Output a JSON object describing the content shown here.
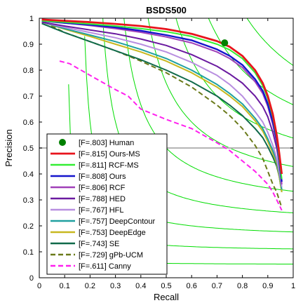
{
  "chart_data": {
    "type": "line",
    "title": "BSDS500",
    "xlabel": "Recall",
    "ylabel": "Precision",
    "xlim": [
      0,
      1
    ],
    "ylim": [
      0,
      1
    ],
    "xticks": [
      "0",
      "0.1",
      "0.2",
      "0.3",
      "0.4",
      "0.5",
      "0.6",
      "0.7",
      "0.8",
      "0.9",
      "1"
    ],
    "yticks": [
      "0",
      "0.1",
      "0.2",
      "0.3",
      "0.4",
      "0.5",
      "0.6",
      "0.7",
      "0.8",
      "0.9",
      "1"
    ],
    "grid": false,
    "legend_position": "bottom-left",
    "reference_line": {
      "y": 0.5,
      "color": "#b4b4b4"
    },
    "iso_f_contours": {
      "color": "#00dd00",
      "f_values": [
        0.1,
        0.2,
        0.3,
        0.4,
        0.5,
        0.6,
        0.7,
        0.8,
        0.9
      ]
    },
    "human_point": {
      "label": "[F=.803] Human",
      "x": 0.73,
      "y": 0.905,
      "color": "#008000"
    },
    "series": [
      {
        "name": "[F=.815] Ours-MS",
        "color": "#e8141c",
        "dash": "solid",
        "width": 2.8,
        "x": [
          0.01,
          0.1,
          0.2,
          0.3,
          0.4,
          0.5,
          0.6,
          0.7,
          0.75,
          0.8,
          0.85,
          0.88,
          0.9,
          0.92,
          0.935,
          0.945,
          0.955
        ],
        "y": [
          0.995,
          0.99,
          0.985,
          0.978,
          0.97,
          0.958,
          0.94,
          0.912,
          0.89,
          0.855,
          0.8,
          0.75,
          0.7,
          0.63,
          0.55,
          0.48,
          0.4
        ]
      },
      {
        "name": "[F=.811] RCF-MS",
        "color": "#33ee33",
        "dash": "solid",
        "width": 2.0,
        "x": [
          0.01,
          0.1,
          0.2,
          0.3,
          0.4,
          0.5,
          0.6,
          0.7,
          0.75,
          0.8,
          0.85,
          0.88,
          0.9,
          0.92,
          0.935,
          0.945,
          0.955
        ],
        "y": [
          0.99,
          0.985,
          0.978,
          0.97,
          0.96,
          0.948,
          0.93,
          0.9,
          0.878,
          0.845,
          0.79,
          0.74,
          0.69,
          0.62,
          0.54,
          0.46,
          0.38
        ]
      },
      {
        "name": "[F=.808] Ours",
        "color": "#1414cc",
        "dash": "solid",
        "width": 2.4,
        "x": [
          0.01,
          0.1,
          0.2,
          0.3,
          0.4,
          0.5,
          0.6,
          0.7,
          0.75,
          0.8,
          0.85,
          0.88,
          0.9,
          0.92,
          0.935,
          0.945,
          0.955
        ],
        "y": [
          0.99,
          0.982,
          0.975,
          0.965,
          0.952,
          0.935,
          0.915,
          0.88,
          0.855,
          0.82,
          0.765,
          0.72,
          0.67,
          0.6,
          0.53,
          0.45,
          0.37
        ]
      },
      {
        "name": "[F=.806] RCF",
        "color": "#a040b8",
        "dash": "solid",
        "width": 2.0,
        "x": [
          0.01,
          0.1,
          0.2,
          0.3,
          0.4,
          0.5,
          0.6,
          0.7,
          0.75,
          0.8,
          0.85,
          0.88,
          0.9,
          0.92,
          0.935,
          0.945,
          0.955
        ],
        "y": [
          0.99,
          0.982,
          0.972,
          0.96,
          0.946,
          0.928,
          0.905,
          0.87,
          0.845,
          0.81,
          0.755,
          0.71,
          0.66,
          0.59,
          0.52,
          0.44,
          0.36
        ]
      },
      {
        "name": "[F=.788] HED",
        "color": "#6a1aa0",
        "dash": "solid",
        "width": 2.0,
        "x": [
          0.01,
          0.1,
          0.2,
          0.3,
          0.4,
          0.5,
          0.6,
          0.7,
          0.75,
          0.8,
          0.85,
          0.88,
          0.9,
          0.92,
          0.935,
          0.945,
          0.955
        ],
        "y": [
          0.985,
          0.97,
          0.955,
          0.94,
          0.92,
          0.895,
          0.86,
          0.815,
          0.785,
          0.75,
          0.7,
          0.66,
          0.62,
          0.56,
          0.5,
          0.44,
          0.36
        ]
      },
      {
        "name": "[F=.767] HFL",
        "color": "#b88ee0",
        "dash": "solid",
        "width": 2.0,
        "x": [
          0.01,
          0.1,
          0.2,
          0.3,
          0.4,
          0.5,
          0.6,
          0.7,
          0.75,
          0.8,
          0.85,
          0.88,
          0.9,
          0.92,
          0.935,
          0.945,
          0.955
        ],
        "y": [
          0.985,
          0.965,
          0.945,
          0.925,
          0.9,
          0.87,
          0.83,
          0.78,
          0.745,
          0.7,
          0.64,
          0.6,
          0.56,
          0.51,
          0.46,
          0.41,
          0.35
        ]
      },
      {
        "name": "[F=.757] DeepContour",
        "color": "#20a0a0",
        "dash": "solid",
        "width": 2.0,
        "x": [
          0.01,
          0.1,
          0.2,
          0.3,
          0.4,
          0.5,
          0.6,
          0.7,
          0.75,
          0.8,
          0.85,
          0.88,
          0.9,
          0.92,
          0.935,
          0.945,
          0.955
        ],
        "y": [
          0.985,
          0.96,
          0.935,
          0.91,
          0.88,
          0.845,
          0.8,
          0.745,
          0.71,
          0.67,
          0.615,
          0.575,
          0.535,
          0.49,
          0.45,
          0.4,
          0.34
        ]
      },
      {
        "name": "[F=.753] DeepEdge",
        "color": "#c8b820",
        "dash": "solid",
        "width": 2.0,
        "x": [
          0.01,
          0.1,
          0.2,
          0.3,
          0.4,
          0.5,
          0.6,
          0.7,
          0.75,
          0.8,
          0.85,
          0.88,
          0.9,
          0.92,
          0.935,
          0.945,
          0.955
        ],
        "y": [
          0.985,
          0.958,
          0.93,
          0.9,
          0.87,
          0.835,
          0.79,
          0.735,
          0.7,
          0.66,
          0.605,
          0.565,
          0.525,
          0.48,
          0.44,
          0.39,
          0.33
        ]
      },
      {
        "name": "[F=.743] SE",
        "color": "#106a4a",
        "dash": "solid",
        "width": 2.0,
        "x": [
          0.01,
          0.1,
          0.2,
          0.3,
          0.4,
          0.5,
          0.6,
          0.7,
          0.75,
          0.8,
          0.85,
          0.88,
          0.9,
          0.92,
          0.935,
          0.945,
          0.955
        ],
        "y": [
          0.98,
          0.945,
          0.91,
          0.875,
          0.84,
          0.8,
          0.755,
          0.7,
          0.665,
          0.625,
          0.575,
          0.54,
          0.505,
          0.465,
          0.43,
          0.39,
          0.33
        ]
      },
      {
        "name": "[F=.729] gPb-UCM",
        "color": "#6a7a1a",
        "dash": "dashed",
        "width": 2.0,
        "x": [
          0.02,
          0.1,
          0.2,
          0.3,
          0.4,
          0.5,
          0.6,
          0.7,
          0.75,
          0.8,
          0.85,
          0.88,
          0.9,
          0.92,
          0.935,
          0.945,
          0.955
        ],
        "y": [
          0.985,
          0.945,
          0.91,
          0.875,
          0.835,
          0.79,
          0.735,
          0.665,
          0.625,
          0.575,
          0.51,
          0.46,
          0.41,
          0.36,
          0.33,
          0.3,
          0.27
        ]
      },
      {
        "name": "[F=.611] Canny",
        "color": "#ff20ee",
        "dash": "dashed",
        "width": 2.0,
        "x": [
          0.08,
          0.12,
          0.2,
          0.3,
          0.35,
          0.4,
          0.5,
          0.6,
          0.7,
          0.75,
          0.8,
          0.85,
          0.88,
          0.9,
          0.92,
          0.94,
          0.955
        ],
        "y": [
          0.835,
          0.825,
          0.78,
          0.725,
          0.7,
          0.65,
          0.61,
          0.575,
          0.52,
          0.49,
          0.45,
          0.41,
          0.38,
          0.36,
          0.33,
          0.29,
          0.26
        ]
      }
    ]
  }
}
